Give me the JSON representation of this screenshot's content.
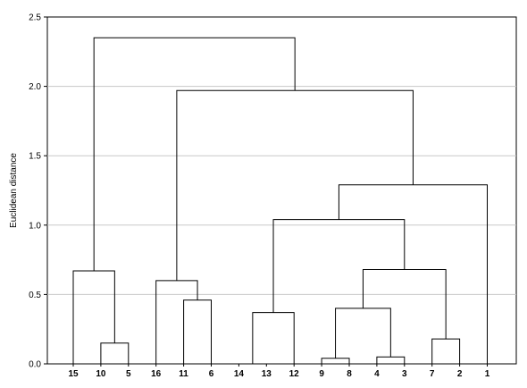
{
  "chart_data": {
    "type": "dendrogram",
    "ylabel": "Euclidean distance",
    "ylim": [
      0,
      2.5
    ],
    "yticks": [
      "0.0",
      "0.5",
      "1.0",
      "1.5",
      "2.0",
      "2.5"
    ],
    "ytick_values": [
      0,
      0.5,
      1.0,
      1.5,
      2.0,
      2.5
    ],
    "grid": true,
    "leaves": [
      "15",
      "10",
      "5",
      "16",
      "11",
      "6",
      "14",
      "13",
      "12",
      "9",
      "8",
      "4",
      "3",
      "7",
      "2",
      "1"
    ],
    "merges": [
      {
        "left": "10",
        "right": "5",
        "height": 0.15
      },
      {
        "left": "15",
        "right": "10+5",
        "height": 0.67
      },
      {
        "left": "11",
        "right": "6",
        "height": 0.46
      },
      {
        "left": "16",
        "right": "11+6",
        "height": 0.6
      },
      {
        "left": "14",
        "right": "13",
        "height": 0.0
      },
      {
        "left": "14+13",
        "right": "12",
        "height": 0.37
      },
      {
        "left": "9",
        "right": "8",
        "height": 0.04
      },
      {
        "left": "4",
        "right": "3",
        "height": 0.05
      },
      {
        "left": "9+8",
        "right": "4+3",
        "height": 0.4
      },
      {
        "left": "7",
        "right": "2",
        "height": 0.18
      },
      {
        "left": "9+8+4+3",
        "right": "7+2",
        "height": 0.68
      },
      {
        "left": "14+13+12",
        "right": "9+8+4+3+7+2",
        "height": 1.04
      },
      {
        "left": "14+13+12+9+8+4+3+7+2",
        "right": "1",
        "height": 1.29
      },
      {
        "left": "16+11+6",
        "right": "14+13+12+9+8+4+3+7+2+1",
        "height": 1.97
      },
      {
        "left": "15+10+5",
        "right": "16+11+6+14+13+12+9+8+4+3+7+2+1",
        "height": 2.35
      }
    ]
  }
}
